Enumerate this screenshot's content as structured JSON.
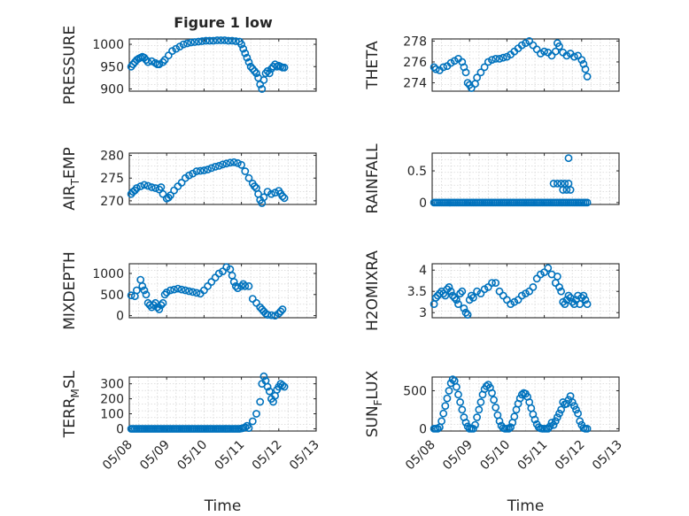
{
  "colors": {
    "series": "#0072BD",
    "axis": "#262626",
    "grid": "#d6d6d6"
  },
  "figure_title": "Figure 1 low",
  "chart_data": [
    {
      "type": "scatter",
      "title": "Figure 1 low",
      "xlabel": "",
      "ylabel": "PRESSURE",
      "ylim": [
        895,
        1012
      ],
      "xlim": [
        0,
        5
      ],
      "yticks": [
        900,
        950,
        1000
      ],
      "xticks": [
        0,
        1,
        2,
        3,
        4,
        5
      ],
      "grid": true,
      "x": [
        0.05,
        0.1,
        0.15,
        0.2,
        0.25,
        0.3,
        0.35,
        0.4,
        0.45,
        0.5,
        0.6,
        0.7,
        0.75,
        0.8,
        0.9,
        0.95,
        1.05,
        1.15,
        1.25,
        1.35,
        1.45,
        1.55,
        1.65,
        1.75,
        1.85,
        1.95,
        2.05,
        2.15,
        2.25,
        2.35,
        2.45,
        2.55,
        2.65,
        2.75,
        2.85,
        2.95,
        3.0,
        3.05,
        3.1,
        3.15,
        3.2,
        3.25,
        3.3,
        3.35,
        3.4,
        3.45,
        3.5,
        3.55,
        3.6,
        3.65,
        3.7,
        3.75,
        3.8,
        3.85,
        3.9,
        3.95,
        4.0,
        4.05,
        4.1,
        4.15
      ],
      "y": [
        950,
        955,
        960,
        965,
        968,
        970,
        972,
        970,
        965,
        960,
        962,
        958,
        955,
        955,
        960,
        965,
        975,
        985,
        990,
        995,
        1000,
        1002,
        1004,
        1005,
        1006,
        1007,
        1008,
        1008,
        1008,
        1009,
        1009,
        1009,
        1008,
        1008,
        1007,
        1006,
        1000,
        990,
        980,
        970,
        960,
        950,
        945,
        940,
        935,
        925,
        910,
        900,
        920,
        935,
        940,
        935,
        945,
        950,
        955,
        950,
        952,
        950,
        948,
        948
      ]
    },
    {
      "type": "scatter",
      "title": "",
      "xlabel": "",
      "ylabel": "THETA",
      "ylim": [
        273.2,
        278.2
      ],
      "xlim": [
        0,
        5
      ],
      "yticks": [
        274,
        276,
        278
      ],
      "xticks": [
        0,
        1,
        2,
        3,
        4,
        5
      ],
      "grid": true,
      "x": [
        0.05,
        0.1,
        0.2,
        0.3,
        0.4,
        0.5,
        0.6,
        0.7,
        0.8,
        0.85,
        0.9,
        0.95,
        1.0,
        1.05,
        1.15,
        1.2,
        1.3,
        1.4,
        1.5,
        1.6,
        1.7,
        1.8,
        1.9,
        2.0,
        2.1,
        2.2,
        2.3,
        2.4,
        2.5,
        2.6,
        2.7,
        2.8,
        2.9,
        3.0,
        3.1,
        3.2,
        3.3,
        3.35,
        3.4,
        3.5,
        3.6,
        3.7,
        3.8,
        3.9,
        4.0,
        4.05,
        4.1,
        4.15
      ],
      "y": [
        275.5,
        275.3,
        275.2,
        275.5,
        275.6,
        275.9,
        276.1,
        276.3,
        276.0,
        275.5,
        275,
        274,
        273.8,
        273.5,
        273.9,
        274.5,
        275.0,
        275.5,
        276.0,
        276.2,
        276.3,
        276.3,
        276.4,
        276.5,
        276.7,
        277.0,
        277.3,
        277.6,
        277.8,
        278.0,
        277.6,
        277.2,
        276.8,
        277.0,
        276.9,
        276.6,
        277.0,
        277.8,
        277.5,
        276.9,
        276.6,
        276.8,
        276.5,
        276.6,
        276.2,
        275.8,
        275.3,
        274.6
      ]
    },
    {
      "type": "scatter",
      "title": "",
      "xlabel": "",
      "ylabel": "AIR_TEMP",
      "ylim": [
        269.2,
        280.5
      ],
      "xlim": [
        0,
        5
      ],
      "yticks": [
        270,
        275,
        280
      ],
      "xticks": [
        0,
        1,
        2,
        3,
        4,
        5
      ],
      "grid": true,
      "x": [
        0.05,
        0.1,
        0.15,
        0.2,
        0.3,
        0.4,
        0.5,
        0.6,
        0.7,
        0.8,
        0.85,
        0.9,
        1.0,
        1.05,
        1.1,
        1.2,
        1.3,
        1.4,
        1.5,
        1.6,
        1.7,
        1.8,
        1.9,
        2.0,
        2.1,
        2.2,
        2.3,
        2.4,
        2.5,
        2.6,
        2.7,
        2.8,
        2.9,
        3.0,
        3.1,
        3.2,
        3.3,
        3.35,
        3.4,
        3.45,
        3.5,
        3.55,
        3.6,
        3.7,
        3.8,
        3.9,
        4.0,
        4.05,
        4.1,
        4.15
      ],
      "y": [
        271.5,
        272,
        272.3,
        272.8,
        273.2,
        273.5,
        273.3,
        273,
        272.8,
        272.5,
        273.0,
        271.5,
        270.5,
        270.7,
        271.2,
        272.3,
        273.2,
        274.0,
        275.0,
        275.6,
        276.0,
        276.5,
        276.6,
        276.7,
        276.9,
        277.2,
        277.5,
        277.7,
        278.0,
        278.2,
        278.4,
        278.5,
        278.3,
        277.9,
        276.5,
        275.0,
        273.8,
        273.2,
        272.8,
        271.5,
        270.2,
        269.5,
        270.8,
        272.0,
        271.5,
        271.8,
        272.2,
        271.6,
        271.0,
        270.6
      ]
    },
    {
      "type": "scatter",
      "title": "",
      "xlabel": "",
      "ylabel": "RAINFALL",
      "ylim": [
        -0.03,
        0.78
      ],
      "xlim": [
        0,
        5
      ],
      "yticks": [
        0,
        0.5
      ],
      "xticks": [
        0,
        1,
        2,
        3,
        4,
        5
      ],
      "grid": true,
      "x": [
        0.05,
        0.1,
        0.15,
        0.2,
        0.25,
        0.3,
        0.35,
        0.4,
        0.45,
        0.5,
        0.55,
        0.6,
        0.65,
        0.7,
        0.75,
        0.8,
        0.85,
        0.9,
        0.95,
        1.0,
        1.05,
        1.1,
        1.15,
        1.2,
        1.25,
        1.3,
        1.35,
        1.4,
        1.45,
        1.5,
        1.55,
        1.6,
        1.65,
        1.7,
        1.75,
        1.8,
        1.85,
        1.9,
        1.95,
        2.0,
        2.05,
        2.1,
        2.15,
        2.2,
        2.25,
        2.3,
        2.35,
        2.4,
        2.45,
        2.5,
        2.55,
        2.6,
        2.65,
        2.7,
        2.75,
        2.8,
        2.85,
        2.9,
        2.95,
        3.0,
        3.05,
        3.1,
        3.15,
        3.2,
        3.25,
        3.3,
        3.35,
        3.4,
        3.45,
        3.5,
        3.55,
        3.6,
        3.65,
        3.7,
        3.75,
        3.8,
        3.85,
        3.9,
        3.95,
        4.0,
        4.05,
        4.1,
        4.15,
        3.25,
        3.35,
        3.45,
        3.55,
        3.65,
        3.5,
        3.6,
        3.7,
        3.65
      ],
      "y": [
        0,
        0,
        0,
        0,
        0,
        0,
        0,
        0,
        0,
        0,
        0,
        0,
        0,
        0,
        0,
        0,
        0,
        0,
        0,
        0,
        0,
        0,
        0,
        0,
        0,
        0,
        0,
        0,
        0,
        0,
        0,
        0,
        0,
        0,
        0,
        0,
        0,
        0,
        0,
        0,
        0,
        0,
        0,
        0,
        0,
        0,
        0,
        0,
        0,
        0,
        0,
        0,
        0,
        0,
        0,
        0,
        0,
        0,
        0,
        0,
        0,
        0,
        0,
        0,
        0,
        0,
        0,
        0,
        0,
        0,
        0,
        0,
        0,
        0,
        0,
        0,
        0,
        0,
        0,
        0,
        0,
        0,
        0,
        0.3,
        0.3,
        0.3,
        0.3,
        0.3,
        0.2,
        0.2,
        0.2,
        0.7
      ]
    },
    {
      "type": "scatter",
      "title": "",
      "xlabel": "",
      "ylabel": "MIXDEPTH",
      "ylim": [
        -50,
        1230
      ],
      "xlim": [
        0,
        5
      ],
      "yticks": [
        0,
        500,
        1000
      ],
      "xticks": [
        0,
        1,
        2,
        3,
        4,
        5
      ],
      "grid": true,
      "x": [
        0.05,
        0.15,
        0.2,
        0.3,
        0.35,
        0.4,
        0.45,
        0.5,
        0.55,
        0.6,
        0.65,
        0.7,
        0.75,
        0.8,
        0.85,
        0.9,
        0.95,
        1.0,
        1.1,
        1.2,
        1.3,
        1.4,
        1.5,
        1.6,
        1.7,
        1.8,
        1.9,
        2.0,
        2.1,
        2.2,
        2.3,
        2.4,
        2.5,
        2.6,
        2.7,
        2.75,
        2.8,
        2.85,
        2.9,
        3.0,
        3.05,
        3.1,
        3.2,
        3.3,
        3.4,
        3.5,
        3.55,
        3.6,
        3.65,
        3.7,
        3.8,
        3.9,
        4.0,
        4.05,
        4.1
      ],
      "y": [
        480,
        460,
        600,
        850,
        700,
        600,
        500,
        300,
        250,
        200,
        250,
        300,
        200,
        150,
        250,
        300,
        500,
        550,
        600,
        620,
        640,
        620,
        600,
        580,
        560,
        540,
        520,
        600,
        700,
        800,
        900,
        1000,
        1050,
        1150,
        1100,
        950,
        800,
        700,
        650,
        700,
        750,
        700,
        700,
        400,
        300,
        200,
        150,
        100,
        50,
        20,
        10,
        0,
        50,
        100,
        150
      ]
    },
    {
      "type": "scatter",
      "title": "",
      "xlabel": "",
      "ylabel": "H2OMIXRA",
      "ylim": [
        2.88,
        4.15
      ],
      "xlim": [
        0,
        5
      ],
      "yticks": [
        3,
        3.5,
        4
      ],
      "xticks": [
        0,
        1,
        2,
        3,
        4,
        5
      ],
      "grid": true,
      "x": [
        0.05,
        0.1,
        0.15,
        0.2,
        0.25,
        0.3,
        0.35,
        0.4,
        0.45,
        0.5,
        0.55,
        0.6,
        0.65,
        0.7,
        0.75,
        0.8,
        0.85,
        0.9,
        0.95,
        1.0,
        1.05,
        1.1,
        1.2,
        1.3,
        1.4,
        1.5,
        1.6,
        1.7,
        1.8,
        1.9,
        2.0,
        2.1,
        2.2,
        2.3,
        2.4,
        2.5,
        2.6,
        2.7,
        2.8,
        2.9,
        3.0,
        3.1,
        3.2,
        3.3,
        3.35,
        3.4,
        3.45,
        3.5,
        3.55,
        3.6,
        3.65,
        3.7,
        3.75,
        3.8,
        3.85,
        3.9,
        3.95,
        4.0,
        4.05,
        4.1,
        4.15
      ],
      "y": [
        3.2,
        3.35,
        3.4,
        3.45,
        3.5,
        3.45,
        3.4,
        3.55,
        3.6,
        3.5,
        3.4,
        3.35,
        3.3,
        3.2,
        3.45,
        3.5,
        3.1,
        3.0,
        2.95,
        3.3,
        3.4,
        3.35,
        3.5,
        3.45,
        3.55,
        3.6,
        3.7,
        3.7,
        3.5,
        3.4,
        3.3,
        3.2,
        3.25,
        3.3,
        3.4,
        3.45,
        3.5,
        3.6,
        3.8,
        3.9,
        3.95,
        4.05,
        3.9,
        3.7,
        3.85,
        3.6,
        3.5,
        3.25,
        3.2,
        3.3,
        3.4,
        3.35,
        3.25,
        3.2,
        3.3,
        3.4,
        3.2,
        3.35,
        3.4,
        3.3,
        3.2
      ]
    },
    {
      "type": "scatter",
      "title": "",
      "xlabel": "Time",
      "ylabel": "TERR_MSL",
      "ylim": [
        -15,
        345
      ],
      "xlim": [
        0,
        5
      ],
      "yticks": [
        0,
        100,
        200,
        300
      ],
      "xticks": [
        0,
        1,
        2,
        3,
        4,
        5
      ],
      "xticklabels": [
        "05/08",
        "05/09",
        "05/10",
        "05/11",
        "05/12",
        "05/13"
      ],
      "grid": true,
      "x": [
        0.05,
        0.1,
        0.15,
        0.2,
        0.25,
        0.3,
        0.35,
        0.4,
        0.45,
        0.5,
        0.55,
        0.6,
        0.65,
        0.7,
        0.75,
        0.8,
        0.85,
        0.9,
        0.95,
        1.0,
        1.05,
        1.1,
        1.15,
        1.2,
        1.25,
        1.3,
        1.35,
        1.4,
        1.45,
        1.5,
        1.55,
        1.6,
        1.65,
        1.7,
        1.75,
        1.8,
        1.85,
        1.9,
        1.95,
        2.0,
        2.05,
        2.1,
        2.15,
        2.2,
        2.25,
        2.3,
        2.35,
        2.4,
        2.45,
        2.5,
        2.55,
        2.6,
        2.65,
        2.7,
        2.75,
        2.8,
        2.85,
        2.9,
        2.95,
        3.0,
        3.05,
        3.1,
        3.15,
        3.2,
        3.3,
        3.4,
        3.5,
        3.55,
        3.6,
        3.65,
        3.7,
        3.75,
        3.8,
        3.85,
        3.9,
        3.95,
        4.0,
        4.05,
        4.1,
        4.15
      ],
      "y": [
        0,
        0,
        0,
        0,
        0,
        0,
        0,
        0,
        0,
        0,
        0,
        0,
        0,
        0,
        0,
        0,
        0,
        0,
        0,
        0,
        0,
        0,
        0,
        0,
        0,
        0,
        0,
        0,
        0,
        0,
        0,
        0,
        0,
        0,
        0,
        0,
        0,
        0,
        0,
        0,
        0,
        0,
        0,
        0,
        0,
        0,
        0,
        0,
        0,
        0,
        0,
        0,
        0,
        0,
        0,
        0,
        0,
        0,
        0,
        2,
        5,
        10,
        20,
        5,
        50,
        100,
        180,
        300,
        350,
        320,
        280,
        250,
        200,
        180,
        220,
        260,
        280,
        300,
        290,
        280
      ]
    },
    {
      "type": "scatter",
      "title": "",
      "xlabel": "Time",
      "ylabel": "SUN_FLUX",
      "ylim": [
        -30,
        680
      ],
      "xlim": [
        0,
        5
      ],
      "yticks": [
        0,
        500
      ],
      "xticks": [
        0,
        1,
        2,
        3,
        4,
        5
      ],
      "xticklabels": [
        "05/08",
        "05/09",
        "05/10",
        "05/11",
        "05/12",
        "05/13"
      ],
      "grid": true,
      "x": [
        0.05,
        0.1,
        0.15,
        0.2,
        0.25,
        0.3,
        0.35,
        0.4,
        0.45,
        0.5,
        0.55,
        0.6,
        0.65,
        0.7,
        0.75,
        0.8,
        0.85,
        0.9,
        0.95,
        1.0,
        1.05,
        1.1,
        1.15,
        1.2,
        1.25,
        1.3,
        1.35,
        1.4,
        1.45,
        1.5,
        1.55,
        1.6,
        1.65,
        1.7,
        1.75,
        1.8,
        1.85,
        1.9,
        1.95,
        2.0,
        2.05,
        2.1,
        2.15,
        2.2,
        2.25,
        2.3,
        2.35,
        2.4,
        2.45,
        2.5,
        2.55,
        2.6,
        2.65,
        2.7,
        2.75,
        2.8,
        2.85,
        2.9,
        2.95,
        3.0,
        3.05,
        3.1,
        3.15,
        3.2,
        3.25,
        3.3,
        3.35,
        3.4,
        3.45,
        3.5,
        3.55,
        3.6,
        3.65,
        3.7,
        3.75,
        3.8,
        3.85,
        3.9,
        3.95,
        4.0,
        4.05,
        4.1,
        4.15
      ],
      "y": [
        0,
        0,
        0,
        20,
        100,
        200,
        300,
        400,
        500,
        600,
        650,
        630,
        550,
        450,
        350,
        250,
        150,
        80,
        30,
        0,
        0,
        0,
        50,
        150,
        250,
        350,
        450,
        520,
        560,
        580,
        540,
        470,
        380,
        280,
        180,
        100,
        40,
        10,
        0,
        0,
        0,
        20,
        80,
        160,
        250,
        330,
        400,
        450,
        470,
        460,
        420,
        350,
        270,
        190,
        120,
        60,
        20,
        5,
        0,
        0,
        0,
        0,
        30,
        80,
        50,
        100,
        150,
        200,
        250,
        350,
        320,
        330,
        380,
        430,
        350,
        300,
        250,
        200,
        100,
        50,
        10,
        0,
        0
      ]
    }
  ]
}
